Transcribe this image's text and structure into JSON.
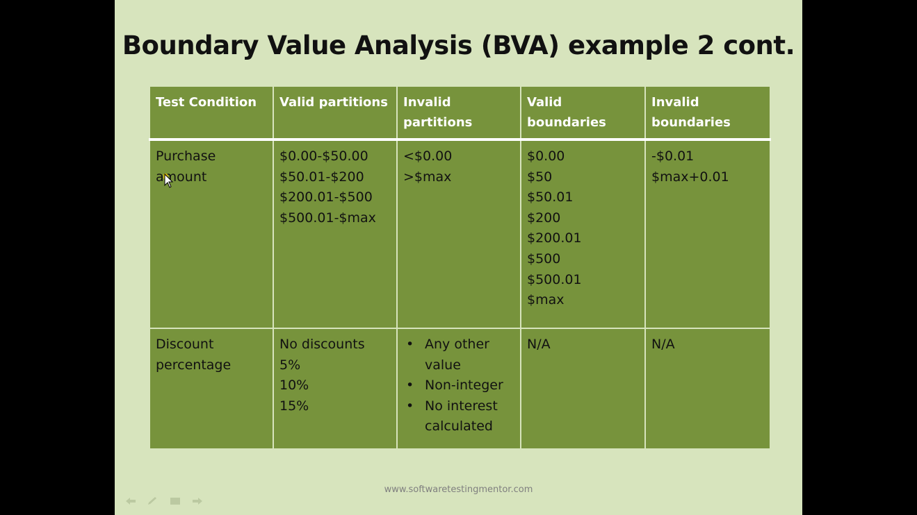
{
  "slide": {
    "title": "Boundary Value Analysis (BVA) example 2 cont.",
    "footer": "www.softwaretestingmentor.com"
  },
  "table": {
    "headers": [
      "Test Condition",
      "Valid partitions",
      "Invalid partitions",
      "Valid boundaries",
      "Invalid boundaries"
    ],
    "rows": [
      {
        "test_condition": "Purchase amount",
        "valid_partitions": [
          "$0.00-$50.00",
          "$50.01-$200",
          "$200.01-$500",
          "$500.01-$max"
        ],
        "invalid_partitions": [
          "<$0.00",
          ">$max"
        ],
        "valid_boundaries": [
          "$0.00",
          "$50",
          "$50.01",
          "$200",
          "$200.01",
          "$500",
          "$500.01",
          "$max"
        ],
        "invalid_boundaries": [
          "-$0.01",
          "$max+0.01"
        ]
      },
      {
        "test_condition": "Discount percentage",
        "valid_partitions": [
          "No discounts",
          "5%",
          "10%",
          "15%"
        ],
        "invalid_partitions": [
          "Any other value",
          "Non-integer",
          "No interest calculated"
        ],
        "bullet": "•",
        "valid_boundaries": [
          "N/A"
        ],
        "invalid_boundaries": [
          "N/A"
        ]
      }
    ]
  },
  "controls": {
    "icons": [
      "back-arrow-icon",
      "pen-icon",
      "menu-icon",
      "forward-arrow-icon"
    ]
  },
  "colors": {
    "slide_background": "#d7e4bd",
    "table_cell": "#77933c",
    "header_text": "#ffffff",
    "letterbox": "#000000"
  }
}
